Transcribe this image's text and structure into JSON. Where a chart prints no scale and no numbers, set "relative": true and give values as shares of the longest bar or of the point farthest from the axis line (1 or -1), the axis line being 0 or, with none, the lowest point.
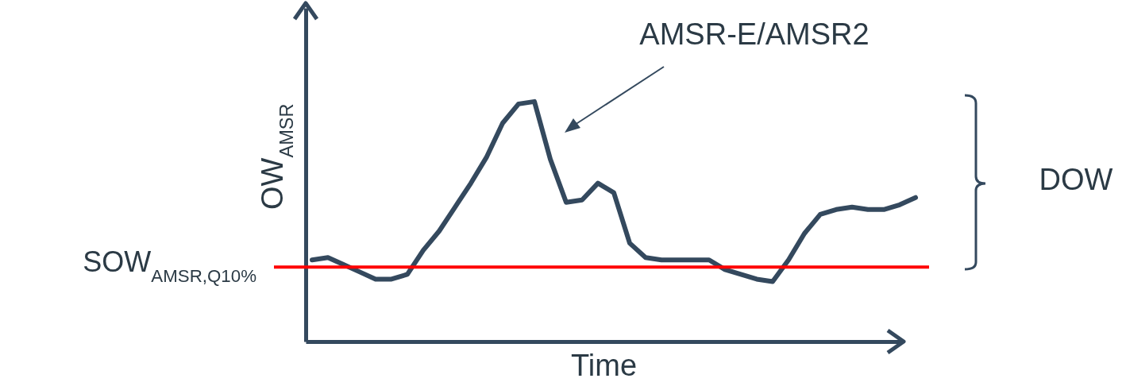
{
  "chart_data": {
    "type": "line",
    "relative": true,
    "xlabel": "Time",
    "ylabel": "OW$_{AMSR}$",
    "categories": [
      null,
      null,
      null,
      null,
      null,
      null,
      null,
      null,
      null,
      null,
      null,
      null,
      null,
      null,
      null,
      null,
      null,
      null,
      null,
      null,
      null,
      null,
      null,
      null,
      null,
      null,
      null,
      null,
      null,
      null,
      null,
      null,
      null,
      null,
      null,
      null,
      null,
      null,
      null
    ],
    "series": [
      {
        "color": "#34495e",
        "values": [
          0.34,
          0.35,
          0.32,
          0.29,
          0.26,
          0.26,
          0.28,
          0.38,
          0.46,
          0.56,
          0.66,
          0.77,
          0.91,
          0.99,
          1.0,
          0.76,
          0.58,
          0.59,
          0.66,
          0.62,
          0.41,
          0.35,
          0.34,
          0.34,
          0.34,
          0.34,
          0.3,
          0.28,
          0.26,
          0.25,
          0.34,
          0.45,
          0.53,
          0.55,
          0.56,
          0.55,
          0.55,
          0.57,
          0.6
        ]
      }
    ],
    "ref_lines": [
      {
        "axis": "y",
        "value": 0.31,
        "label": "SOW$_{AMSR,Q10%}$",
        "color": "#ff0000"
      }
    ],
    "annotations": [
      "AMSR-E/AMSR2",
      "DOW"
    ],
    "marker": "none",
    "line_style": "solid"
  }
}
